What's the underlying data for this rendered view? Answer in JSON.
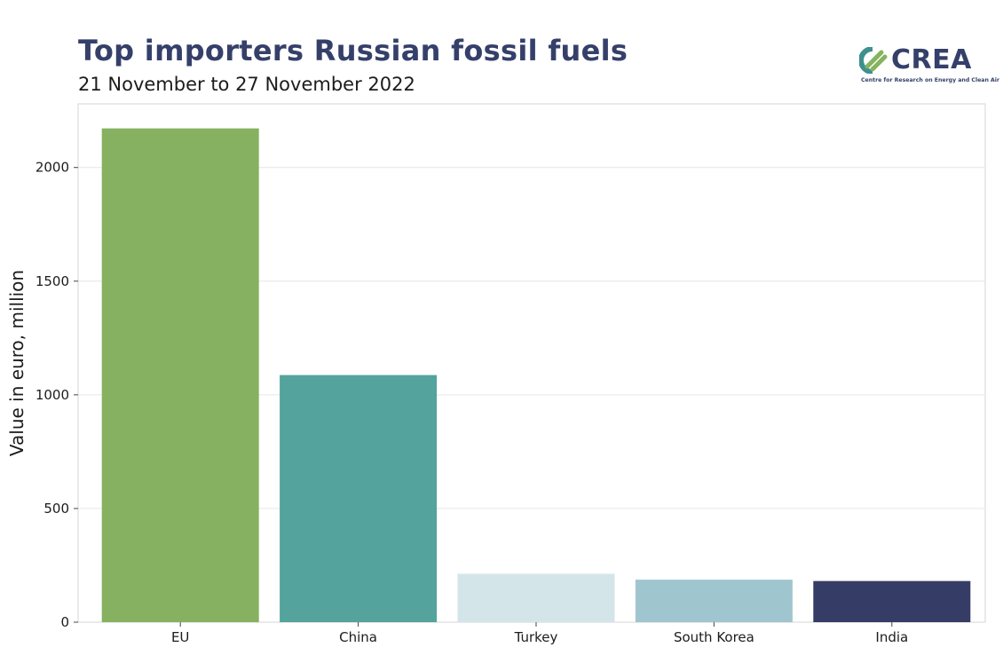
{
  "header": {
    "title": "Top importers Russian fossil fuels",
    "subtitle": "21 November to 27 November 2022"
  },
  "logo": {
    "wordmark": "CREA",
    "tagline": "Centre for Research on Energy and Clean Air",
    "colors": {
      "green": "#86b35f",
      "teal": "#3f8f8f",
      "navy": "#35406a"
    }
  },
  "chart_data": {
    "type": "bar",
    "categories": [
      "EU",
      "China",
      "Turkey",
      "South Korea",
      "India"
    ],
    "values": [
      2172,
      1087,
      213,
      187,
      181
    ],
    "colors": [
      "#86b160",
      "#54a39d",
      "#d4e5ea",
      "#9fc6ce",
      "#353c66"
    ],
    "ylabel": "Value in euro, million",
    "ylim": [
      0,
      2280
    ],
    "yticks": [
      0,
      500,
      1000,
      1500,
      2000
    ],
    "grid": true
  }
}
